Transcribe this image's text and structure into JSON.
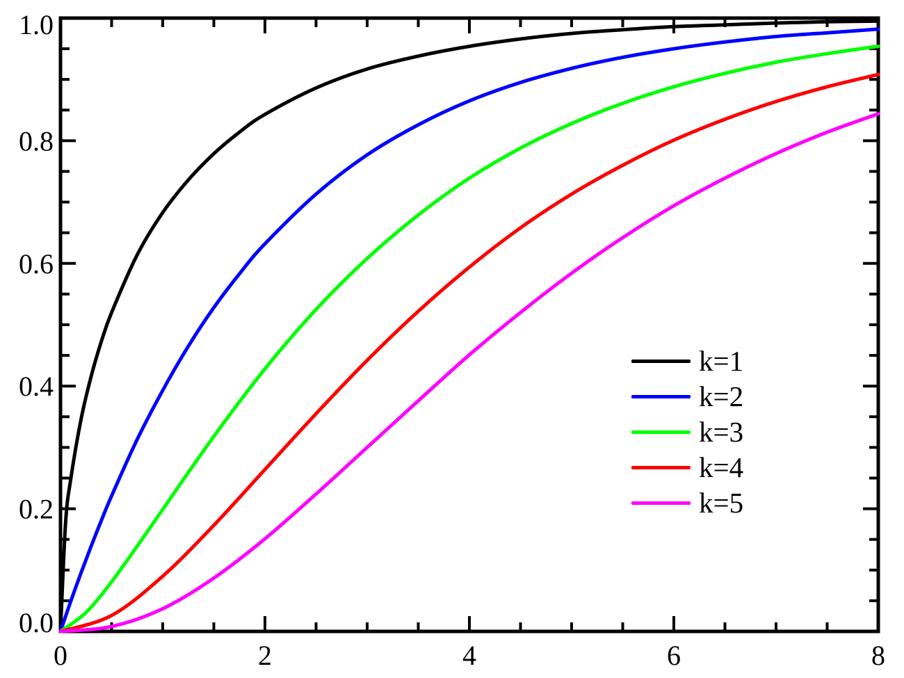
{
  "chart_data": {
    "type": "line",
    "title": "",
    "xlabel": "",
    "ylabel": "",
    "xlim": [
      0,
      8
    ],
    "ylim": [
      0,
      1
    ],
    "grid": false,
    "legend_position": "right-center",
    "x_major_ticks": [
      0,
      2,
      4,
      6,
      8
    ],
    "x_tick_labels": [
      "0",
      "2",
      "4",
      "6",
      "8"
    ],
    "x_minor_step": 0.5,
    "y_major_ticks": [
      0,
      0.2,
      0.4,
      0.6,
      0.8,
      1.0
    ],
    "y_tick_labels": [
      "0.0",
      "0.2",
      "0.4",
      "0.6",
      "0.8",
      "1.0"
    ],
    "y_minor_step": 0.05,
    "axis_color": "#000000",
    "background_color": "#ffffff",
    "series": [
      {
        "name": "k=1",
        "color": "#000000",
        "points": [
          [
            0,
            0
          ],
          [
            0.05,
            0.177
          ],
          [
            0.1,
            0.248
          ],
          [
            0.2,
            0.345
          ],
          [
            0.3,
            0.416
          ],
          [
            0.4,
            0.473
          ],
          [
            0.5,
            0.52
          ],
          [
            0.75,
            0.614
          ],
          [
            1,
            0.683
          ],
          [
            1.25,
            0.736
          ],
          [
            1.5,
            0.779
          ],
          [
            1.75,
            0.814
          ],
          [
            2,
            0.843
          ],
          [
            2.5,
            0.886
          ],
          [
            3,
            0.917
          ],
          [
            3.5,
            0.938
          ],
          [
            4,
            0.954
          ],
          [
            4.5,
            0.966
          ],
          [
            5,
            0.975
          ],
          [
            5.5,
            0.981
          ],
          [
            6,
            0.986
          ],
          [
            6.5,
            0.989
          ],
          [
            7,
            0.992
          ],
          [
            7.5,
            0.994
          ],
          [
            8,
            0.995
          ]
        ]
      },
      {
        "name": "k=2",
        "color": "#0000ff",
        "points": [
          [
            0,
            0
          ],
          [
            0.1,
            0.049
          ],
          [
            0.2,
            0.095
          ],
          [
            0.3,
            0.139
          ],
          [
            0.4,
            0.181
          ],
          [
            0.5,
            0.221
          ],
          [
            0.75,
            0.313
          ],
          [
            1,
            0.393
          ],
          [
            1.25,
            0.465
          ],
          [
            1.5,
            0.528
          ],
          [
            1.75,
            0.583
          ],
          [
            2,
            0.632
          ],
          [
            2.5,
            0.713
          ],
          [
            3,
            0.777
          ],
          [
            3.5,
            0.826
          ],
          [
            4,
            0.865
          ],
          [
            4.5,
            0.895
          ],
          [
            5,
            0.918
          ],
          [
            5.5,
            0.936
          ],
          [
            6,
            0.95
          ],
          [
            6.5,
            0.961
          ],
          [
            7,
            0.97
          ],
          [
            7.5,
            0.976
          ],
          [
            8,
            0.982
          ]
        ]
      },
      {
        "name": "k=3",
        "color": "#00ff00",
        "points": [
          [
            0,
            0
          ],
          [
            0.25,
            0.031
          ],
          [
            0.5,
            0.081
          ],
          [
            0.75,
            0.139
          ],
          [
            1,
            0.199
          ],
          [
            1.5,
            0.318
          ],
          [
            2,
            0.428
          ],
          [
            2.5,
            0.525
          ],
          [
            3,
            0.608
          ],
          [
            3.5,
            0.679
          ],
          [
            4,
            0.739
          ],
          [
            4.5,
            0.788
          ],
          [
            5,
            0.828
          ],
          [
            5.5,
            0.861
          ],
          [
            6,
            0.888
          ],
          [
            6.5,
            0.91
          ],
          [
            7,
            0.928
          ],
          [
            7.5,
            0.942
          ],
          [
            8,
            0.954
          ]
        ]
      },
      {
        "name": "k=4",
        "color": "#ff0000",
        "points": [
          [
            0,
            0
          ],
          [
            0.5,
            0.026
          ],
          [
            1,
            0.09
          ],
          [
            1.5,
            0.173
          ],
          [
            2,
            0.264
          ],
          [
            2.5,
            0.355
          ],
          [
            3,
            0.442
          ],
          [
            3.5,
            0.522
          ],
          [
            4,
            0.594
          ],
          [
            4.5,
            0.658
          ],
          [
            5,
            0.713
          ],
          [
            5.5,
            0.76
          ],
          [
            6,
            0.801
          ],
          [
            6.5,
            0.835
          ],
          [
            7,
            0.864
          ],
          [
            7.5,
            0.888
          ],
          [
            8,
            0.908
          ]
        ]
      },
      {
        "name": "k=5",
        "color": "#ff00ff",
        "points": [
          [
            0,
            0
          ],
          [
            0.5,
            0.008
          ],
          [
            1,
            0.037
          ],
          [
            1.5,
            0.087
          ],
          [
            2,
            0.151
          ],
          [
            2.5,
            0.224
          ],
          [
            3,
            0.3
          ],
          [
            3.5,
            0.376
          ],
          [
            4,
            0.451
          ],
          [
            4.5,
            0.52
          ],
          [
            5,
            0.584
          ],
          [
            5.5,
            0.642
          ],
          [
            6,
            0.694
          ],
          [
            6.5,
            0.739
          ],
          [
            7,
            0.779
          ],
          [
            7.5,
            0.814
          ],
          [
            8,
            0.844
          ]
        ]
      }
    ]
  }
}
